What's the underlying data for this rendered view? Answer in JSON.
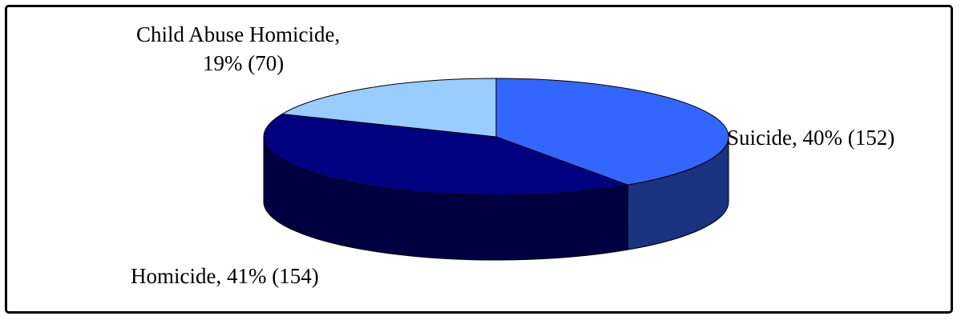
{
  "chart_data": {
    "type": "pie",
    "style": "3d",
    "title": "",
    "slices": [
      {
        "name": "Suicide",
        "percent": 40,
        "count": 152,
        "label": "Suicide, 40% (152)",
        "color": "#3366ff",
        "side_color": "#1a3380"
      },
      {
        "name": "Homicide",
        "percent": 41,
        "count": 154,
        "label": "Homicide, 41% (154)",
        "color": "#000080",
        "side_color": "#000040"
      },
      {
        "name": "Child Abuse Homicide",
        "percent": 19,
        "count": 70,
        "label_lines": [
          "Child Abuse Homicide,",
          "19% (70)"
        ],
        "color": "#99ccff",
        "side_color": "#4d6680"
      }
    ],
    "legend": "none",
    "border": true
  }
}
